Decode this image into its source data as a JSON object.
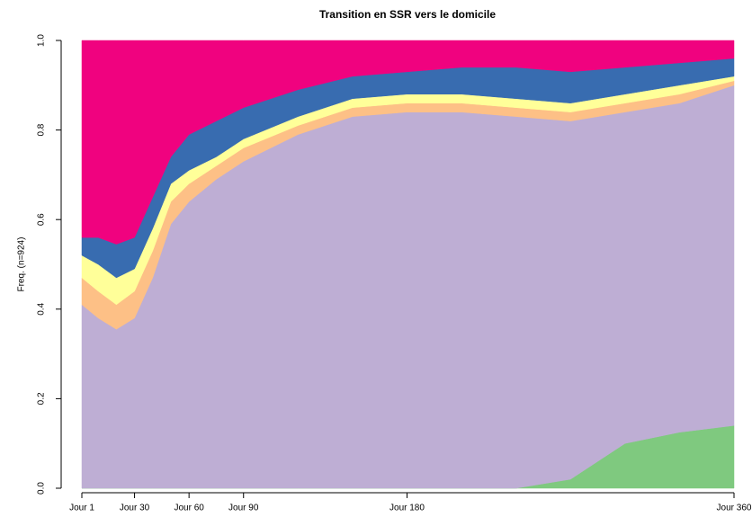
{
  "chart_data": {
    "type": "stacked_area",
    "title": "Transition en SSR vers le domicile",
    "ylabel": "Freq. (n=924)",
    "x": [
      1,
      10,
      20,
      30,
      40,
      50,
      60,
      75,
      90,
      120,
      150,
      180,
      210,
      240,
      270,
      300,
      330,
      360
    ],
    "series": [
      {
        "color": "#7fc97f",
        "values": [
          0,
          0,
          0,
          0,
          0,
          0,
          0,
          0,
          0,
          0,
          0,
          0,
          0,
          0,
          0.02,
          0.1,
          0.125,
          0.14
        ]
      },
      {
        "color": "#beaed4",
        "values": [
          0.41,
          0.38,
          0.355,
          0.38,
          0.47,
          0.59,
          0.64,
          0.69,
          0.73,
          0.79,
          0.83,
          0.84,
          0.84,
          0.83,
          0.8,
          0.74,
          0.735,
          0.76
        ]
      },
      {
        "color": "#fdc086",
        "values": [
          0.06,
          0.06,
          0.055,
          0.06,
          0.06,
          0.05,
          0.04,
          0.03,
          0.03,
          0.02,
          0.02,
          0.02,
          0.02,
          0.02,
          0.02,
          0.02,
          0.02,
          0.01
        ]
      },
      {
        "color": "#ffff99",
        "values": [
          0.05,
          0.06,
          0.06,
          0.05,
          0.05,
          0.04,
          0.03,
          0.02,
          0.02,
          0.02,
          0.02,
          0.02,
          0.02,
          0.02,
          0.02,
          0.02,
          0.02,
          0.01
        ]
      },
      {
        "color": "#386cb0",
        "values": [
          0.04,
          0.06,
          0.075,
          0.07,
          0.07,
          0.06,
          0.08,
          0.08,
          0.07,
          0.06,
          0.05,
          0.05,
          0.06,
          0.07,
          0.07,
          0.06,
          0.05,
          0.04
        ]
      },
      {
        "color": "#f0027f",
        "values": [
          0.44,
          0.44,
          0.455,
          0.44,
          0.35,
          0.26,
          0.21,
          0.18,
          0.15,
          0.11,
          0.08,
          0.07,
          0.06,
          0.06,
          0.07,
          0.06,
          0.05,
          0.04
        ]
      }
    ],
    "xlim": [
      1,
      360
    ],
    "xticks": [
      {
        "value": 1,
        "label": "Jour 1"
      },
      {
        "value": 30,
        "label": "Jour 30"
      },
      {
        "value": 60,
        "label": "Jour 60"
      },
      {
        "value": 90,
        "label": "Jour 90"
      },
      {
        "value": 180,
        "label": "Jour 180"
      },
      {
        "value": 360,
        "label": "Jour 360"
      }
    ],
    "ylim": [
      0,
      1
    ],
    "yticks": [
      {
        "value": 0,
        "label": "0.0"
      },
      0.2,
      0.4,
      0.6,
      0.8,
      {
        "value": 1,
        "label": "1.0"
      }
    ]
  }
}
